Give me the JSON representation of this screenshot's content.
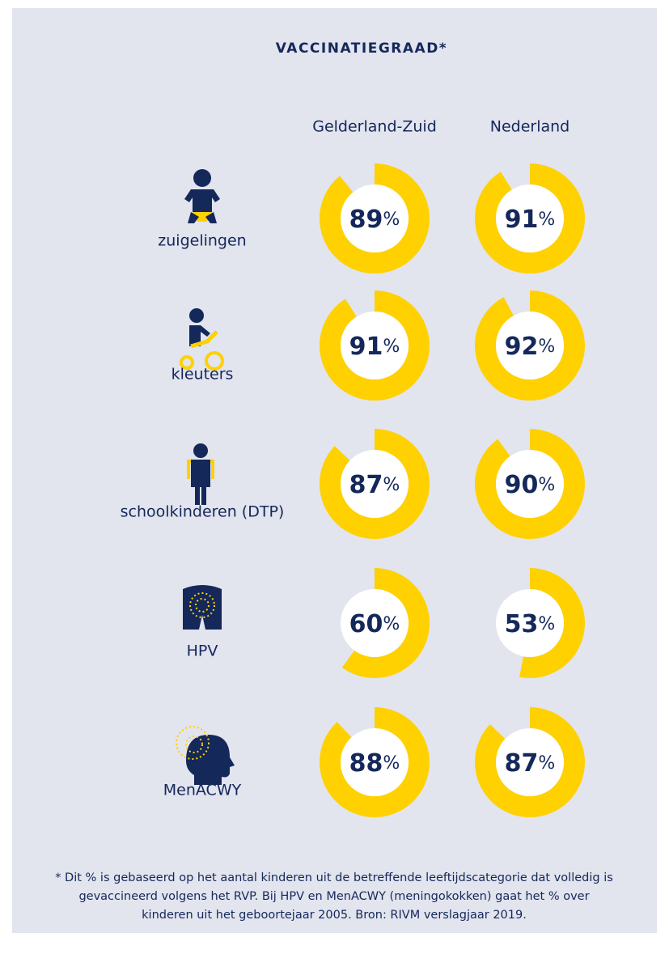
{
  "chart_data": {
    "type": "donut",
    "title": "VACCINATIEGRAAD*",
    "categories": [
      "zuigelingen",
      "kleuters",
      "schoolkinderen (DTP)",
      "HPV",
      "MenACWY"
    ],
    "series": [
      {
        "name": "Gelderland-Zuid",
        "color": "#ffd100",
        "values": [
          89,
          91,
          87,
          60,
          88
        ]
      },
      {
        "name": "Nederland",
        "color": "#ffd100",
        "values": [
          91,
          92,
          90,
          53,
          87
        ]
      }
    ],
    "unit": "%",
    "footnote": [
      "* Dit % is gebaseerd op het aantal kinderen uit de betreffende leeftijdscategorie dat volledig is",
      "gevaccineerd volgens het RVP. Bij HPV en MenACWY (meningokokken) gaat het % over",
      "kinderen uit het geboortejaar 2005. Bron: RIVM verslagjaar 2019."
    ]
  }
}
